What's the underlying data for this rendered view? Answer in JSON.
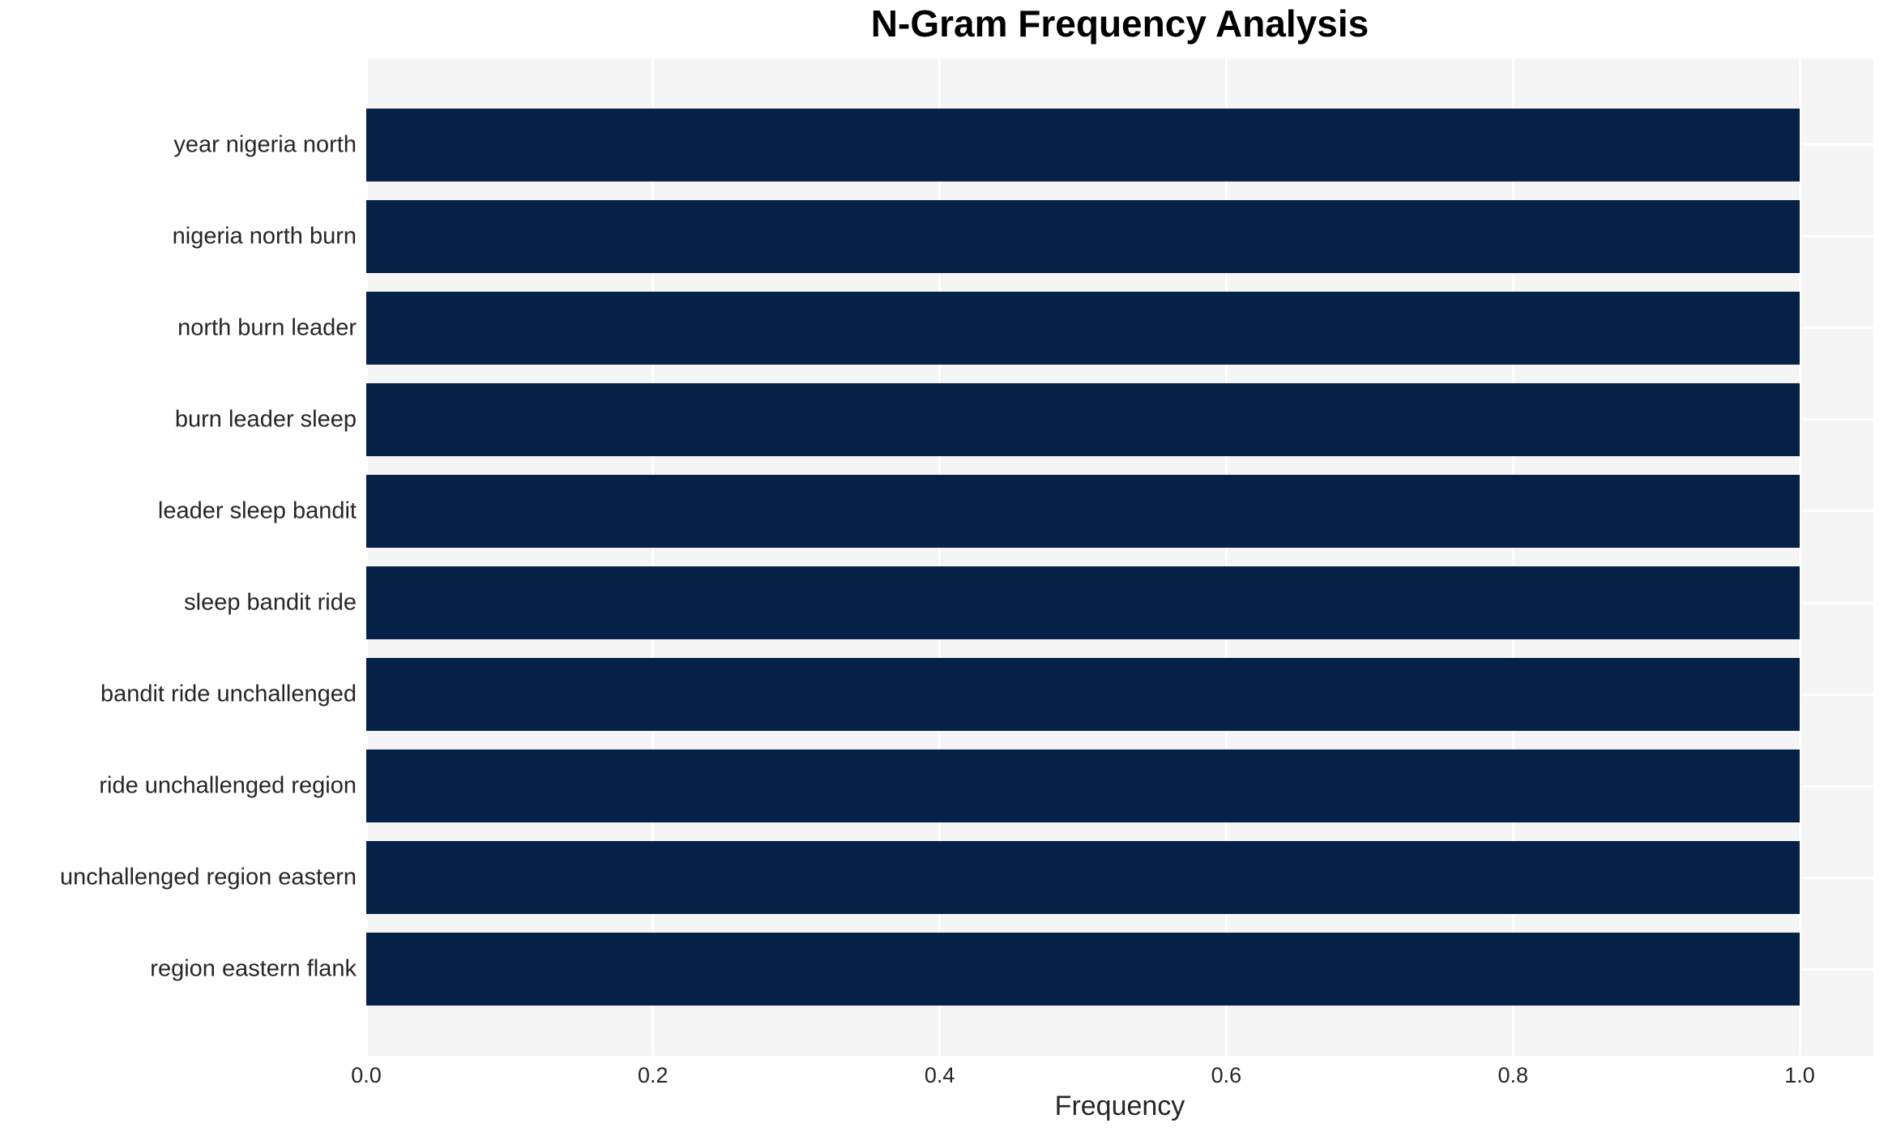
{
  "chart_data": {
    "type": "bar",
    "orientation": "horizontal",
    "title": "N-Gram Frequency Analysis",
    "xlabel": "Frequency",
    "ylabel": "",
    "categories": [
      "year nigeria north",
      "nigeria north burn",
      "north burn leader",
      "burn leader sleep",
      "leader sleep bandit",
      "sleep bandit ride",
      "bandit ride unchallenged",
      "ride unchallenged region",
      "unchallenged region eastern",
      "region eastern flank"
    ],
    "values": [
      1.0,
      1.0,
      1.0,
      1.0,
      1.0,
      1.0,
      1.0,
      1.0,
      1.0,
      1.0
    ],
    "xticks": [
      0.0,
      0.2,
      0.4,
      0.6,
      0.8,
      1.0
    ],
    "xlim": [
      0,
      1.0514
    ],
    "grid": true,
    "legend": false,
    "colors": {
      "bar": "#052147",
      "plot_background": "#f5f5f5",
      "gridline": "#ffffff",
      "title_text": "#000000",
      "tick_text": "#262626"
    }
  }
}
